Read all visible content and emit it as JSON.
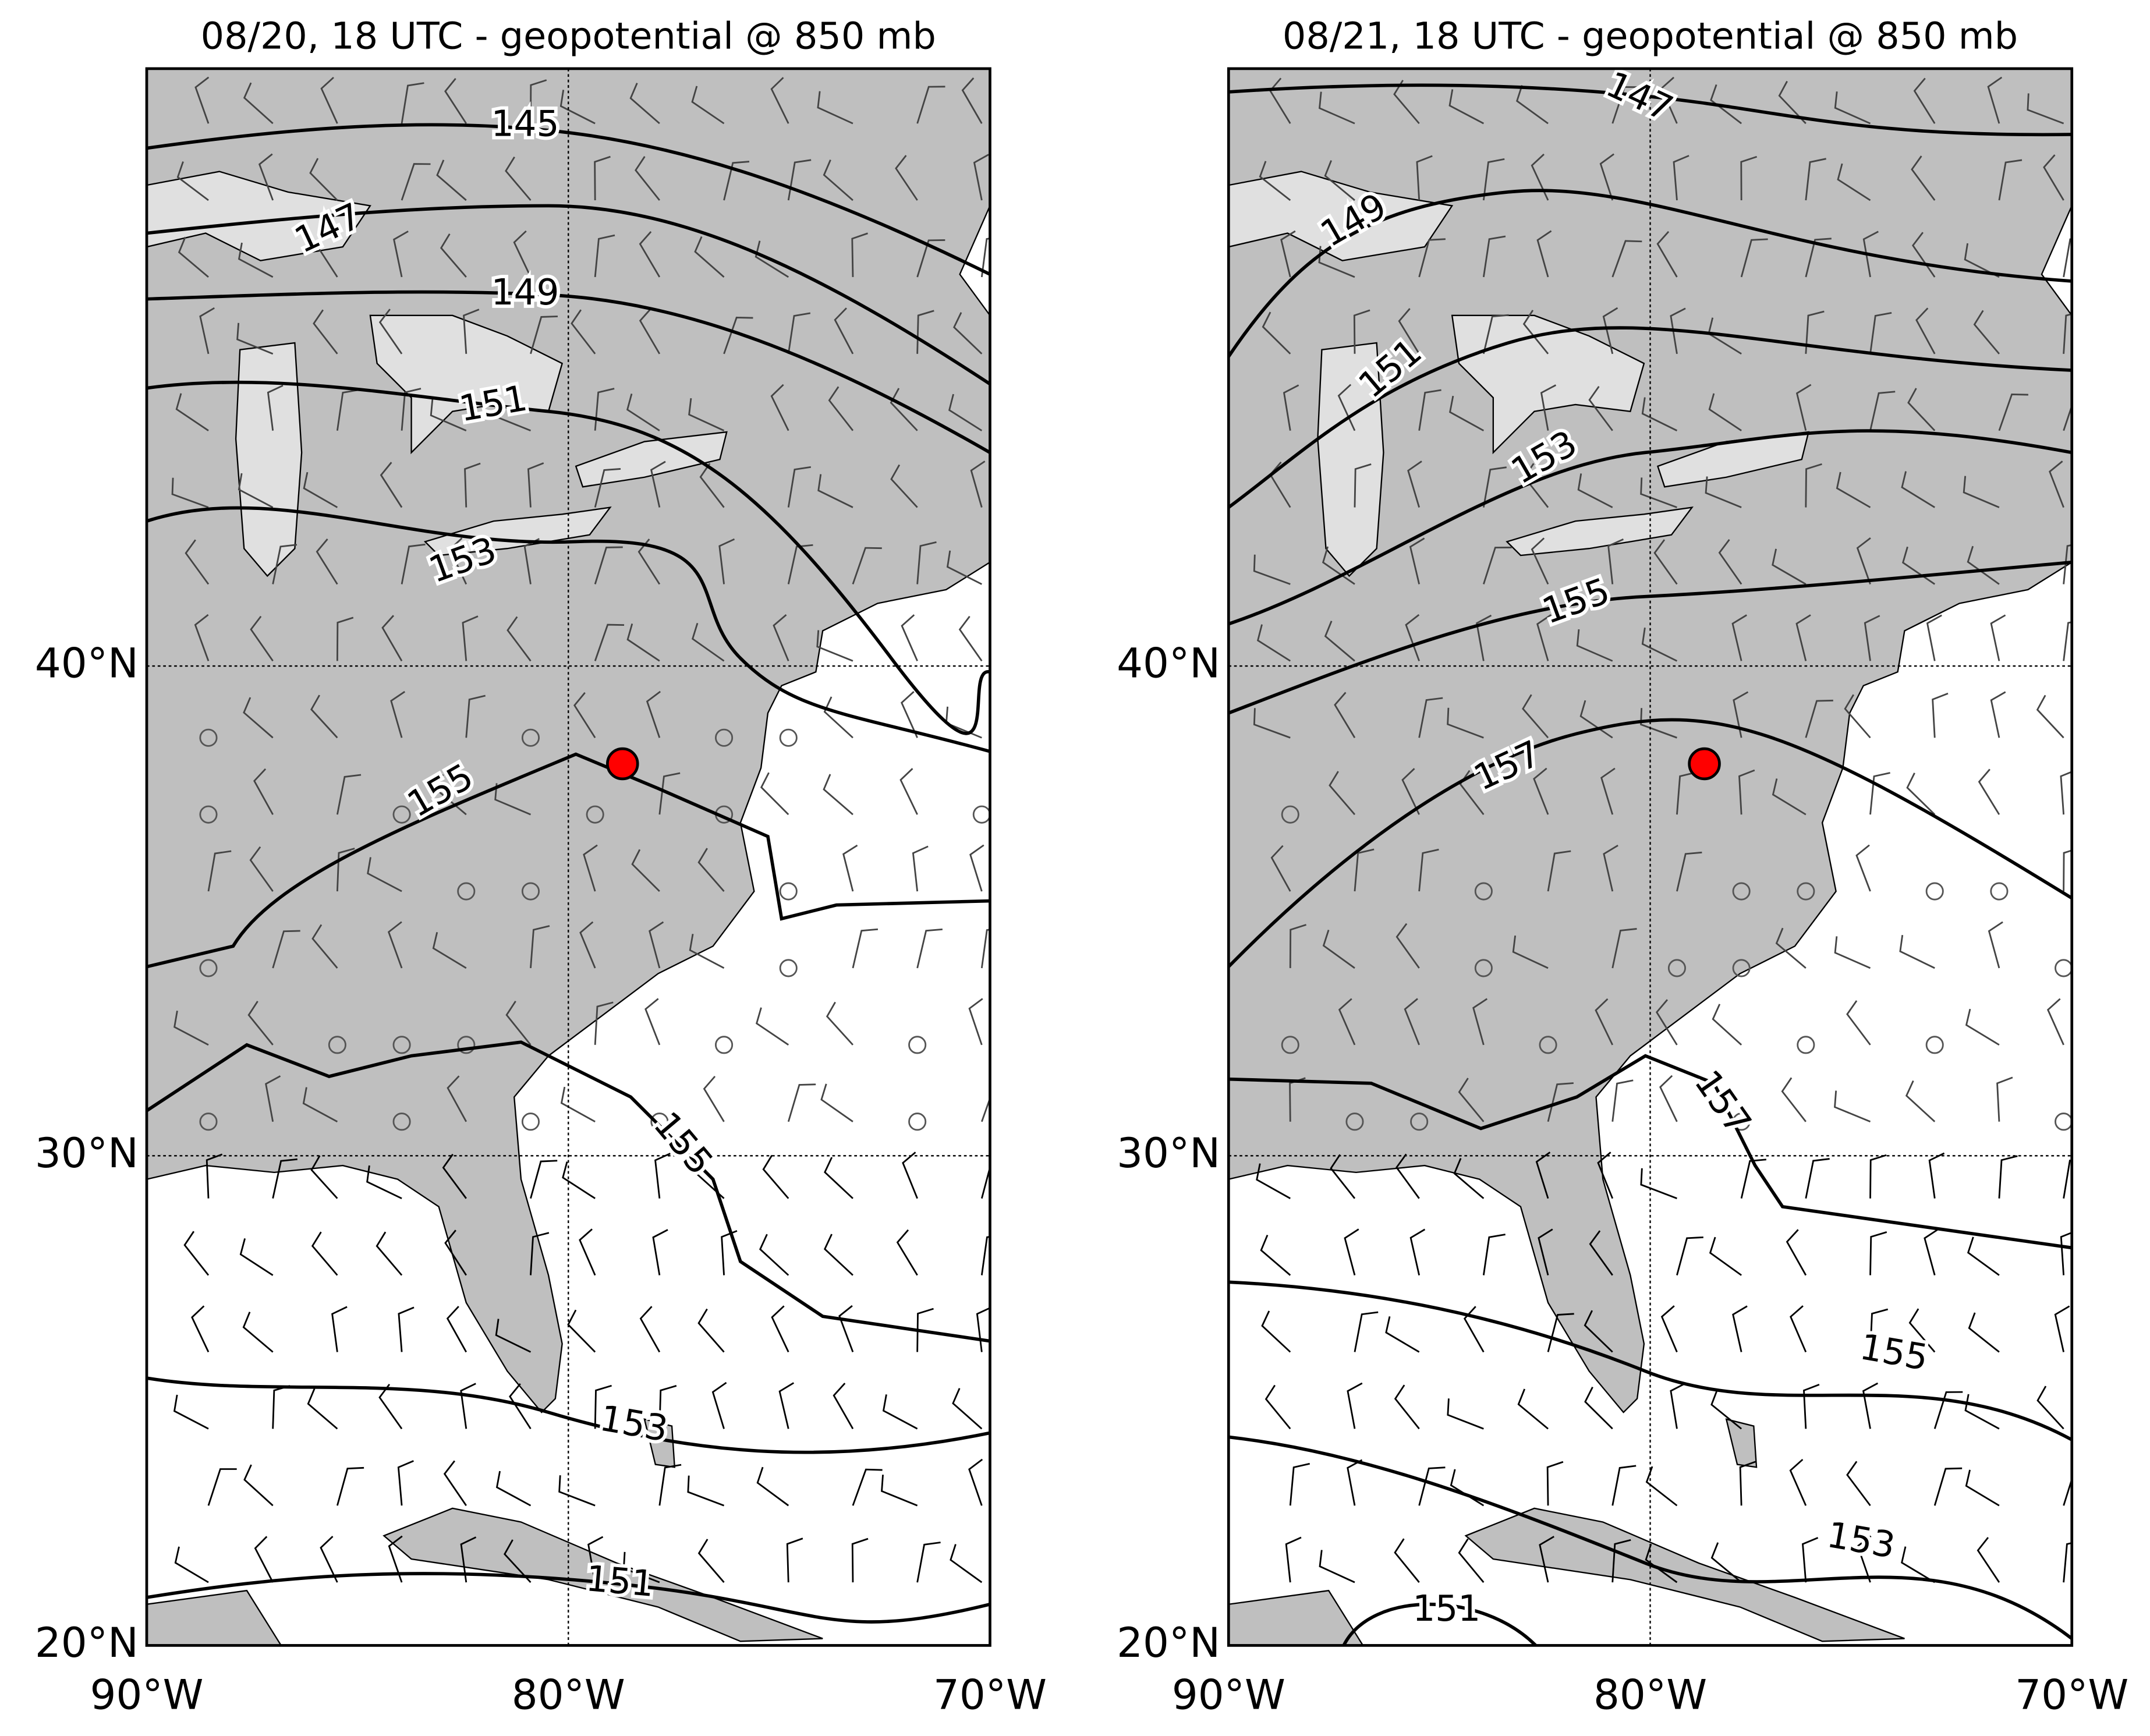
{
  "panels": [
    {
      "title": "08/20, 18 UTC - geopotential @ 850 mb",
      "xticks": [
        {
          "value": -90,
          "label": "90°W"
        },
        {
          "value": -80,
          "label": "80°W"
        },
        {
          "value": -70,
          "label": "70°W"
        }
      ],
      "yticks": [
        {
          "value": 20,
          "label": "20°N"
        },
        {
          "value": 30,
          "label": "30°N"
        },
        {
          "value": 40,
          "label": "40°N"
        }
      ],
      "xlim": [
        -90,
        -70
      ],
      "ylim": [
        20,
        52.2
      ],
      "contours": [
        145,
        147,
        149,
        151,
        153,
        155,
        155,
        153,
        151
      ]
    },
    {
      "title": "08/21, 18 UTC - geopotential @ 850 mb",
      "xticks": [
        {
          "value": -90,
          "label": "90°W"
        },
        {
          "value": -80,
          "label": "80°W"
        },
        {
          "value": -70,
          "label": "70°W"
        }
      ],
      "yticks": [
        {
          "value": 20,
          "label": "20°N"
        },
        {
          "value": 30,
          "label": "30°N"
        },
        {
          "value": 40,
          "label": "40°N"
        }
      ],
      "xlim": [
        -90,
        -70
      ],
      "ylim": [
        20,
        52.2
      ],
      "contours": [
        147,
        149,
        151,
        153,
        155,
        157,
        157,
        155,
        153,
        151
      ]
    }
  ]
}
